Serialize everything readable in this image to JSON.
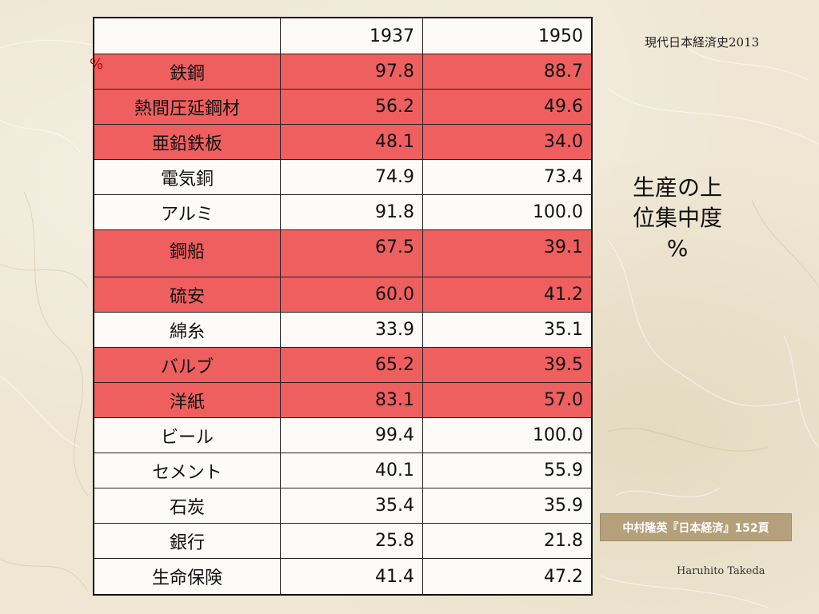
{
  "table": {
    "header": {
      "name": "",
      "col1": "1937",
      "col2": "1950"
    },
    "rows": [
      {
        "name": "鉄鋼",
        "v1937": "97.8",
        "v1950": "88.7",
        "highlight": true
      },
      {
        "name": "熱間圧延鋼材",
        "v1937": "56.2",
        "v1950": "49.6",
        "highlight": true
      },
      {
        "name": "亜鉛鉄板",
        "v1937": "48.1",
        "v1950": "34.0",
        "highlight": true
      },
      {
        "name": "電気銅",
        "v1937": "74.9",
        "v1950": "73.4",
        "highlight": false
      },
      {
        "name": "アルミ",
        "v1937": "91.8",
        "v1950": "100.0",
        "highlight": false
      },
      {
        "name": "鋼船",
        "v1937": "67.5",
        "v1950": "39.1",
        "highlight": true
      },
      {
        "name": "硫安",
        "v1937": "60.0",
        "v1950": "41.2",
        "highlight": true
      },
      {
        "name": "綿糸",
        "v1937": "33.9",
        "v1950": "35.1",
        "highlight": false
      },
      {
        "name": "バルブ",
        "v1937": "65.2",
        "v1950": "39.5",
        "highlight": true
      },
      {
        "name": "洋紙",
        "v1937": "83.1",
        "v1950": "57.0",
        "highlight": true
      },
      {
        "name": "ビール",
        "v1937": "99.4",
        "v1950": "100.0",
        "highlight": false
      },
      {
        "name": "セメント",
        "v1937": "40.1",
        "v1950": "55.9",
        "highlight": false
      },
      {
        "name": "石炭",
        "v1937": "35.4",
        "v1950": "35.9",
        "highlight": false
      },
      {
        "name": "銀行",
        "v1937": "25.8",
        "v1950": "21.8",
        "highlight": false
      },
      {
        "name": "生命保険",
        "v1937": "41.4",
        "v1950": "47.2",
        "highlight": false
      }
    ]
  },
  "percent_mark": "%",
  "course_title": "現代日本経済史2013",
  "side_label": {
    "line1": "生産の上",
    "line2": "位集中度",
    "line3": "%"
  },
  "source": "中村隆英『日本経済』152頁",
  "author": "Haruhito Takeda",
  "colors": {
    "highlight_row": "#ef5f5f",
    "plain_row": "#fdfbf7",
    "source_box": "#b4a07a",
    "background": "#efe7d4"
  }
}
